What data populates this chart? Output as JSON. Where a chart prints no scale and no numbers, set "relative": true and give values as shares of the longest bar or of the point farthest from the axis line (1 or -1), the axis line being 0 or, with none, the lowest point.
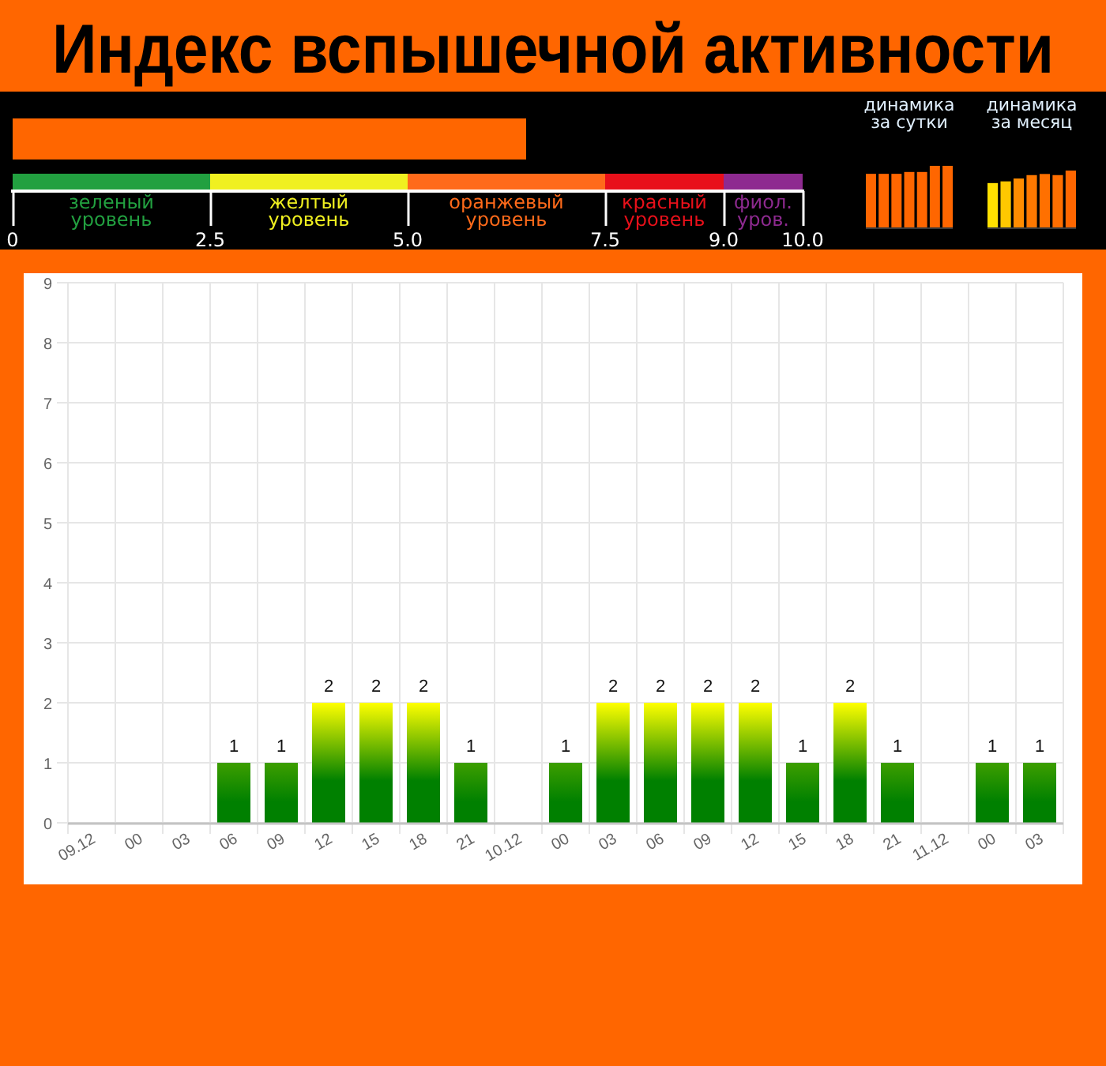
{
  "chart_data": [
    {
      "type": "bar",
      "orientation": "horizontal",
      "title": "Индекс вспышечной активности",
      "categories": [
        null
      ],
      "values": [
        6.5
      ],
      "color": "#ff6600",
      "xlim": [
        0,
        10
      ],
      "xticks": [
        0,
        2.5,
        {
          "value": 5,
          "label": "5.0"
        },
        7.5,
        {
          "value": 9,
          "label": "9.0"
        },
        {
          "value": 10,
          "label": "10.0"
        }
      ],
      "bands": [
        {
          "axis": "x",
          "from": 0,
          "to": 2.5,
          "label": "зеленый уровень",
          "color": "#22a040"
        },
        {
          "axis": "x",
          "from": 2.5,
          "to": 5,
          "label": "желтый уровень",
          "color": "#f0f020"
        },
        {
          "axis": "x",
          "from": 5,
          "to": 7.5,
          "label": "оранжевый уровень",
          "color": "#ff6a1a"
        },
        {
          "axis": "x",
          "from": 7.5,
          "to": 9,
          "label": "красный уровень",
          "color": "#e8101a"
        },
        {
          "axis": "x",
          "from": 9,
          "to": 10,
          "label": "фиол. уров.",
          "color": "#8e2a90"
        }
      ]
    },
    {
      "type": "bar",
      "title": "динамика за сутки",
      "relative": true,
      "categories": [
        null,
        null,
        null,
        null,
        null,
        null,
        null
      ],
      "values": [
        0.87,
        0.87,
        0.87,
        0.9,
        0.9,
        1,
        1
      ],
      "color": "#ff6600"
    },
    {
      "type": "bar",
      "title": "динамика за месяц",
      "relative": true,
      "categories": [
        null,
        null,
        null,
        null,
        null,
        null,
        null
      ],
      "values": [
        0.78,
        0.81,
        0.86,
        0.92,
        0.94,
        0.92,
        1
      ],
      "colors": [
        "#ffe000",
        "#ffc800",
        "#ff8c00",
        "#ff7800",
        "#ff7000",
        "#ff6e00",
        "#ff6600"
      ]
    },
    {
      "type": "bar",
      "categories": [
        "09.12",
        "00",
        "03",
        "06",
        "09",
        "12",
        "15",
        "18",
        "21",
        "10.12",
        "00",
        "03",
        "06",
        "09",
        "12",
        "15",
        "18",
        "21",
        "11.12",
        "00",
        "03"
      ],
      "values": [
        0,
        0,
        0,
        1,
        1,
        2,
        2,
        2,
        1,
        0,
        1,
        2,
        2,
        2,
        2,
        1,
        2,
        1,
        0,
        1,
        1
      ],
      "value_labels": [
        null,
        null,
        null,
        "1",
        "1",
        "2",
        "2",
        "2",
        "1",
        null,
        "1",
        "2",
        "2",
        "2",
        "2",
        "1",
        "2",
        "1",
        null,
        "1",
        "1"
      ],
      "color": "#008000",
      "colors": [
        "#008000",
        "#008000",
        "#008000",
        "#3d9e00",
        "#3d9e00",
        "#ffff00",
        "#ffff00",
        "#ffff00",
        "#3d9e00",
        "#008000",
        "#3d9e00",
        "#ffff00",
        "#ffff00",
        "#ffff00",
        "#ffff00",
        "#3d9e00",
        "#ffff00",
        "#3d9e00",
        "#008000",
        "#3d9e00",
        "#3d9e00"
      ],
      "ylim": [
        0,
        9
      ],
      "yticks": [
        0,
        1,
        2,
        3,
        4,
        5,
        6,
        7,
        8,
        9
      ],
      "grid": true
    }
  ]
}
